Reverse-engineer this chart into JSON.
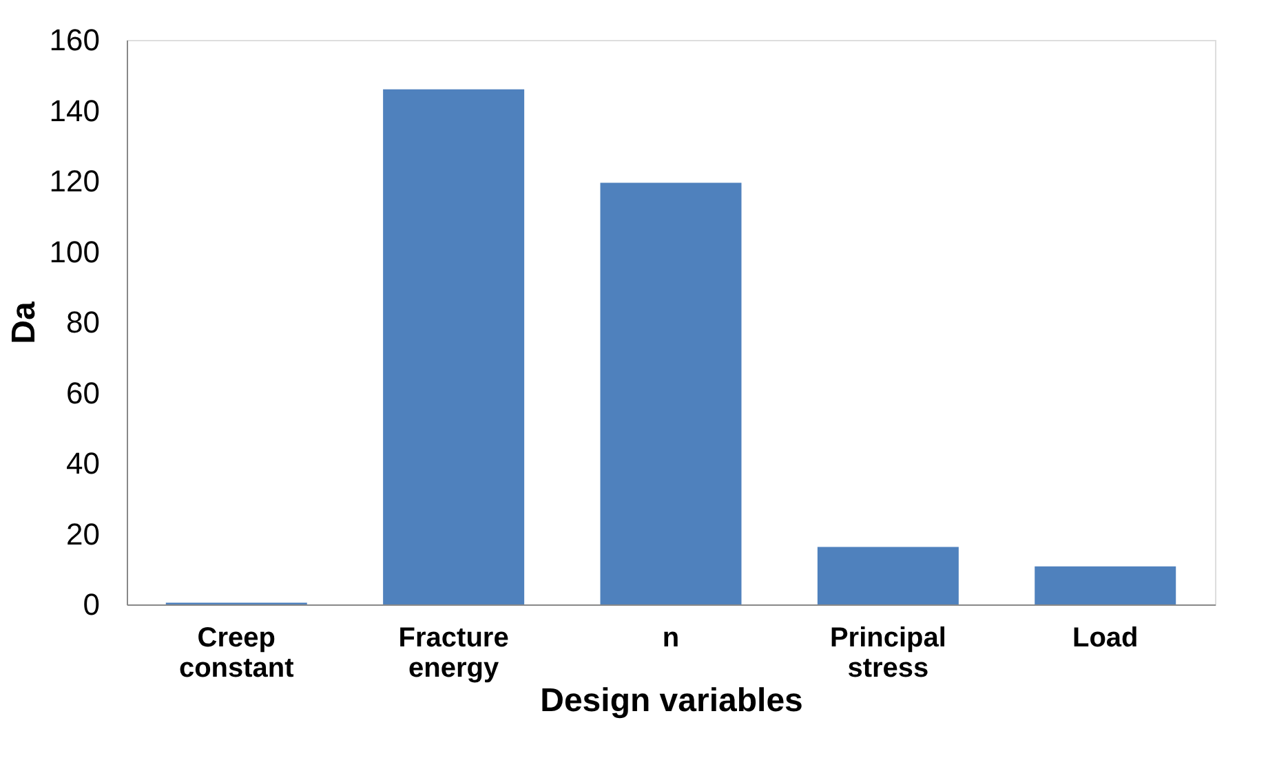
{
  "chart_data": {
    "type": "bar",
    "xlabel": "Design variables",
    "ylabel": "Da",
    "categories": [
      "Creep constant",
      "Fracture energy",
      "n",
      "Principal stress",
      "Load"
    ],
    "values": [
      0.5,
      146,
      119.5,
      16.3,
      10.8
    ],
    "color": "#4f81bd",
    "ylim": [
      0,
      160
    ],
    "yticks": [
      0,
      20,
      40,
      60,
      80,
      100,
      120,
      140,
      160
    ],
    "grid": false
  }
}
